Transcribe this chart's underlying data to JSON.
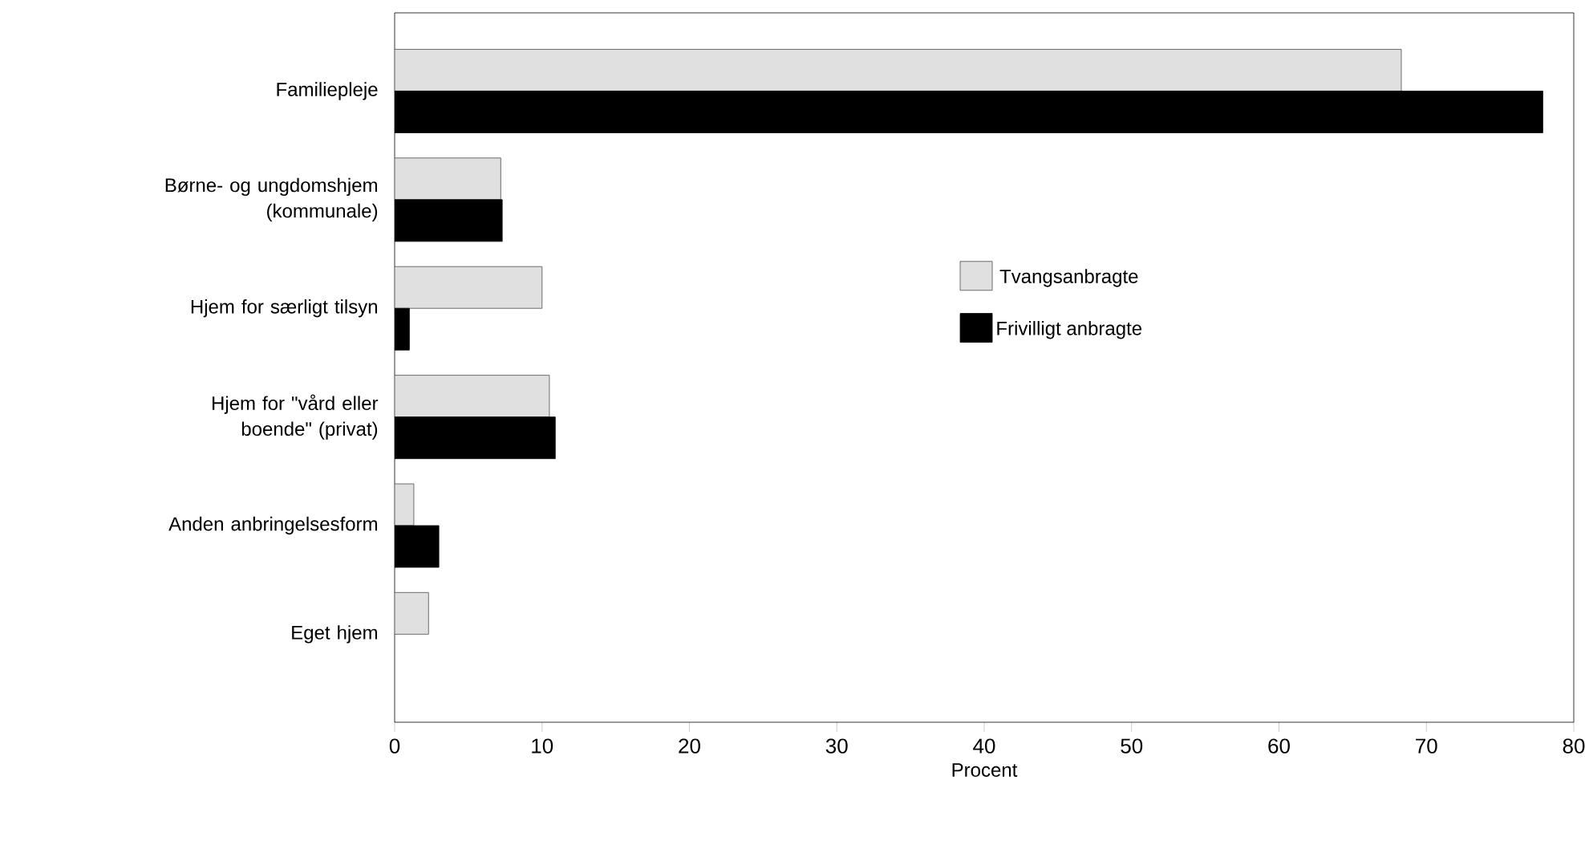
{
  "chart_data": {
    "type": "bar",
    "orientation": "horizontal",
    "xlabel": "Procent",
    "categories": [
      "Familiepleje",
      "Børne- og ungdomshjem (kommunale)",
      "Hjem for særligt tilsyn",
      "Hjem for \"vård eller boende\" (privat)",
      "Anden anbringelsesform",
      "Eget hjem"
    ],
    "series": [
      {
        "name": "Tvangsanbragte",
        "color": "#e0e0e0",
        "values": [
          68.3,
          7.2,
          10.0,
          10.5,
          1.3,
          2.3
        ]
      },
      {
        "name": "Frivilligt anbragte",
        "color": "#000000",
        "values": [
          77.9,
          7.3,
          1.0,
          10.9,
          3.0,
          null
        ]
      }
    ],
    "xlim": [
      0,
      80
    ],
    "xticks": [
      0,
      10,
      20,
      30,
      40,
      50,
      60,
      70,
      80
    ],
    "grid": false,
    "legend": "right"
  }
}
